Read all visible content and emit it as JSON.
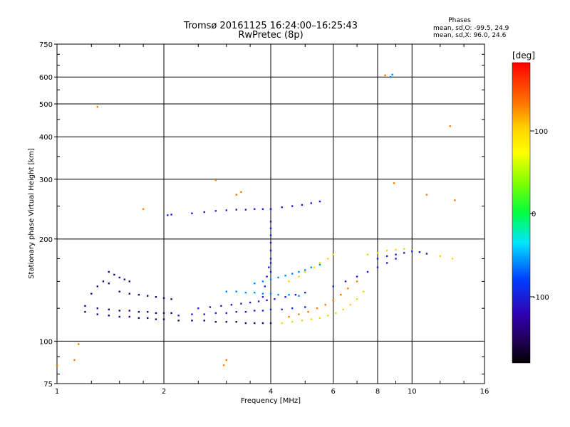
{
  "header": {
    "title": "Tromsø 20161125 16:24:00–16:25:43",
    "subtitle": "RwPretec (8p)"
  },
  "stats": {
    "heading": "Phases",
    "o_line": "mean, sd,O: -99.5, 24.9",
    "x_line": "mean, sd,X:  96.0, 24.6"
  },
  "colorbar": {
    "unit": "[deg]",
    "ticks": [
      "100",
      "0",
      "-100"
    ]
  },
  "chart_data": {
    "type": "scatter",
    "xlabel": "Frequency [MHz]",
    "ylabel": "Stationary phase Virtual Height [km]",
    "xscale": "log",
    "yscale": "log",
    "xlim": [
      1,
      16
    ],
    "ylim": [
      75,
      750
    ],
    "xticks": [
      "1",
      "2",
      "4",
      "6",
      "8",
      "10",
      "16"
    ],
    "yticks": [
      "75",
      "100",
      "200",
      "300",
      "400",
      "500",
      "600",
      "750"
    ],
    "grid": true,
    "colorbar_range": [
      -180,
      180
    ],
    "phase_colors": {
      "purple": -140,
      "blue": -100,
      "cyan": -60,
      "yellow": 100,
      "orange": 130,
      "green": 0,
      "red": 170
    },
    "series": [
      {
        "x": [
          1.2,
          1.3,
          1.4,
          1.5,
          1.6,
          1.7,
          1.8,
          1.9,
          2.0,
          2.2,
          2.4,
          2.6,
          2.8,
          3.0,
          3.2,
          3.4,
          3.6,
          3.8,
          4.0
        ],
        "y": [
          122,
          120,
          119,
          118,
          118,
          117,
          117,
          116,
          116,
          115,
          115,
          115,
          114,
          114,
          114,
          113,
          113,
          113,
          113
        ],
        "phase": -140
      },
      {
        "x": [
          1.2,
          1.3,
          1.4,
          1.5,
          1.6,
          1.7,
          1.8,
          1.9,
          2.0,
          2.1
        ],
        "y": [
          127,
          125,
          124,
          123,
          123,
          122,
          122,
          121,
          121,
          121
        ],
        "phase": -140
      },
      {
        "x": [
          1.25,
          1.3,
          1.35,
          1.4,
          1.5,
          1.6,
          1.7,
          1.8,
          1.9,
          2.0,
          2.1
        ],
        "y": [
          138,
          145,
          150,
          148,
          140,
          138,
          137,
          136,
          135,
          134,
          133
        ],
        "phase": -140
      },
      {
        "x": [
          1.4,
          1.45,
          1.5,
          1.55,
          1.6
        ],
        "y": [
          160,
          157,
          154,
          152,
          150
        ],
        "phase": -140
      },
      {
        "x": [
          2.2,
          2.4,
          2.6,
          2.8,
          3.0,
          3.2,
          3.4,
          3.6,
          3.8,
          4.0,
          4.3,
          4.6,
          5.0
        ],
        "y": [
          119,
          120,
          120,
          121,
          121,
          122,
          122,
          123,
          123,
          124,
          124,
          125,
          126
        ],
        "phase": -100
      },
      {
        "x": [
          2.5,
          2.7,
          2.9,
          3.1,
          3.3,
          3.5,
          3.7,
          3.9,
          4.1,
          4.4,
          4.7,
          5.0
        ],
        "y": [
          125,
          126,
          127,
          128,
          129,
          130,
          131,
          132,
          133,
          135,
          137,
          139
        ],
        "phase": -100
      },
      {
        "x": [
          3.0,
          3.2,
          3.4,
          3.6,
          3.8,
          4.0,
          4.2,
          4.5,
          4.8
        ],
        "y": [
          140,
          140,
          139,
          139,
          138,
          138,
          137,
          137,
          136
        ],
        "phase": -60
      },
      {
        "x": [
          3.6,
          3.8,
          4.0,
          4.2,
          4.4,
          4.6,
          4.8,
          5.0,
          5.2,
          5.5
        ],
        "y": [
          148,
          150,
          152,
          154,
          156,
          158,
          160,
          162,
          165,
          168
        ],
        "phase": -60
      },
      {
        "x": [
          3.8,
          3.85,
          3.9,
          3.95,
          4.0,
          4.0,
          4.0,
          4.0,
          4.0,
          4.0,
          4.0,
          4.0
        ],
        "y": [
          135,
          145,
          155,
          165,
          175,
          185,
          195,
          205,
          215,
          225,
          160,
          170
        ],
        "phase": -100
      },
      {
        "x": [
          4.3,
          4.6,
          4.9,
          5.2,
          5.5,
          5.8,
          6.1,
          6.4,
          6.7,
          7.0,
          7.3
        ],
        "y": [
          113,
          114,
          115,
          116,
          117,
          119,
          121,
          124,
          128,
          133,
          140
        ],
        "phase": 100
      },
      {
        "x": [
          4.5,
          4.8,
          5.1,
          5.4,
          5.7,
          6.0,
          6.3,
          6.6,
          7.0
        ],
        "y": [
          118,
          120,
          122,
          125,
          128,
          132,
          137,
          143,
          150
        ],
        "phase": 130
      },
      {
        "x": [
          4.5,
          4.8,
          5.0,
          5.3,
          5.5,
          5.8,
          6.0
        ],
        "y": [
          150,
          155,
          160,
          165,
          170,
          175,
          180
        ],
        "phase": 100
      },
      {
        "x": [
          6.0,
          6.5,
          7.0,
          7.5,
          8.0,
          8.5,
          9.0
        ],
        "y": [
          145,
          150,
          155,
          160,
          165,
          170,
          175
        ],
        "phase": -100
      },
      {
        "x": [
          7.5,
          8.0,
          8.5,
          9.0,
          9.5,
          10.0,
          10.5,
          11.0,
          12.0,
          13.0
        ],
        "y": [
          180,
          182,
          185,
          186,
          187,
          185,
          183,
          181,
          178,
          175
        ],
        "phase": 100
      },
      {
        "x": [
          8.0,
          8.5,
          9.0,
          9.5,
          10.0,
          10.5,
          11.0
        ],
        "y": [
          175,
          178,
          180,
          182,
          184,
          183,
          181
        ],
        "phase": -100
      },
      {
        "x": [
          2.05,
          2.1,
          2.4,
          2.6,
          2.8,
          3.0,
          3.2,
          3.4,
          3.6,
          3.8,
          4.0
        ],
        "y": [
          235,
          236,
          238,
          240,
          242,
          243,
          244,
          244,
          245,
          245,
          245
        ],
        "phase": -100
      },
      {
        "x": [
          4.0,
          4.3,
          4.6,
          4.9,
          5.2,
          5.5
        ],
        "y": [
          245,
          248,
          250,
          252,
          255,
          258
        ],
        "phase": -100
      },
      {
        "x": [
          8.7,
          8.8
        ],
        "y": [
          600,
          610
        ],
        "phase": -60
      },
      {
        "x": [
          8.4,
          8.9,
          11.0,
          12.8,
          13.2,
          1.3,
          1.75,
          2.8,
          3.2,
          3.0,
          2.95,
          1.0,
          1.12,
          1.15,
          3.3
        ],
        "y": [
          607,
          292,
          270,
          430,
          260,
          490,
          245,
          298,
          270,
          88,
          85,
          85,
          88,
          98,
          275
        ],
        "phase": 130
      }
    ]
  }
}
